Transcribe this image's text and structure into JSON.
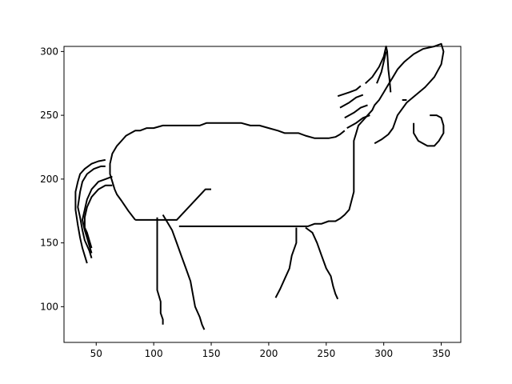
{
  "chart_data": {
    "type": "line",
    "title": "",
    "xlabel": "",
    "ylabel": "",
    "xlim": [
      22,
      367
    ],
    "ylim": [
      72,
      304
    ],
    "x_ticks": [
      50,
      100,
      150,
      200,
      250,
      300,
      350
    ],
    "y_ticks": [
      100,
      150,
      200,
      250,
      300
    ],
    "grid": false,
    "legend": "none",
    "line_color": "#000000",
    "series": [
      {
        "points": [
          [
            84,
            168
          ],
          [
            120,
            168
          ],
          [
            145,
            192
          ],
          [
            150,
            192
          ]
        ]
      },
      {
        "points": [
          [
            122,
            163
          ],
          [
            232,
            163
          ],
          [
            234,
            163
          ],
          [
            240,
            165
          ],
          [
            246,
            165
          ],
          [
            252,
            167
          ],
          [
            258,
            167
          ],
          [
            262,
            169
          ],
          [
            266,
            172
          ],
          [
            270,
            176
          ],
          [
            272,
            183
          ],
          [
            274,
            190
          ],
          [
            274,
            230
          ],
          [
            276,
            236
          ],
          [
            278,
            242
          ],
          [
            282,
            246
          ],
          [
            286,
            250
          ],
          [
            290,
            254
          ],
          [
            292,
            258
          ],
          [
            296,
            262
          ],
          [
            300,
            268
          ],
          [
            304,
            274
          ],
          [
            308,
            280
          ],
          [
            312,
            286
          ],
          [
            318,
            292
          ],
          [
            326,
            298
          ],
          [
            334,
            302
          ],
          [
            344,
            304
          ],
          [
            350,
            306
          ],
          [
            352,
            300
          ],
          [
            350,
            290
          ],
          [
            344,
            280
          ],
          [
            336,
            272
          ],
          [
            328,
            266
          ],
          [
            320,
            260
          ],
          [
            316,
            255
          ],
          [
            312,
            250
          ],
          [
            308,
            240
          ],
          [
            304,
            235
          ],
          [
            298,
            231
          ],
          [
            292,
            228
          ]
        ]
      },
      {
        "points": [
          [
            84,
            168
          ],
          [
            78,
            175
          ],
          [
            72,
            183
          ],
          [
            68,
            188
          ],
          [
            66,
            192
          ],
          [
            64,
            198
          ],
          [
            62,
            204
          ],
          [
            62,
            212
          ],
          [
            64,
            220
          ],
          [
            68,
            226
          ],
          [
            72,
            230
          ],
          [
            76,
            234
          ],
          [
            80,
            236
          ],
          [
            84,
            238
          ],
          [
            88,
            238
          ],
          [
            94,
            240
          ],
          [
            100,
            240
          ],
          [
            108,
            242
          ],
          [
            116,
            242
          ],
          [
            124,
            242
          ],
          [
            132,
            242
          ],
          [
            140,
            242
          ],
          [
            146,
            244
          ],
          [
            152,
            244
          ],
          [
            160,
            244
          ],
          [
            168,
            244
          ],
          [
            176,
            244
          ],
          [
            184,
            242
          ],
          [
            192,
            242
          ],
          [
            200,
            240
          ],
          [
            208,
            238
          ],
          [
            214,
            236
          ],
          [
            220,
            236
          ],
          [
            226,
            236
          ],
          [
            232,
            234
          ],
          [
            240,
            232
          ],
          [
            246,
            232
          ],
          [
            252,
            232
          ],
          [
            258,
            233
          ],
          [
            262,
            235
          ],
          [
            266,
            238
          ]
        ]
      },
      {
        "points": [
          [
            103,
            170
          ],
          [
            103,
            113
          ],
          [
            106,
            104
          ],
          [
            106,
            95
          ],
          [
            108,
            90
          ],
          [
            108,
            86
          ]
        ]
      },
      {
        "points": [
          [
            108,
            172
          ],
          [
            112,
            166
          ],
          [
            116,
            160
          ],
          [
            120,
            150
          ],
          [
            124,
            140
          ],
          [
            128,
            130
          ],
          [
            132,
            120
          ],
          [
            134,
            110
          ],
          [
            136,
            100
          ],
          [
            140,
            92
          ],
          [
            142,
            86
          ],
          [
            144,
            82
          ]
        ]
      },
      {
        "points": [
          [
            224,
            162
          ],
          [
            224,
            150
          ],
          [
            220,
            140
          ],
          [
            218,
            130
          ],
          [
            214,
            122
          ],
          [
            210,
            114
          ],
          [
            206,
            107
          ]
        ]
      },
      {
        "points": [
          [
            232,
            162
          ],
          [
            238,
            158
          ],
          [
            242,
            150
          ],
          [
            246,
            140
          ],
          [
            250,
            130
          ],
          [
            254,
            124
          ],
          [
            256,
            116
          ],
          [
            258,
            110
          ],
          [
            260,
            106
          ]
        ]
      },
      {
        "points": [
          [
            58,
            215
          ],
          [
            52,
            214
          ],
          [
            46,
            212
          ],
          [
            40,
            208
          ],
          [
            36,
            204
          ],
          [
            34,
            198
          ],
          [
            32,
            190
          ],
          [
            32,
            176
          ],
          [
            34,
            164
          ],
          [
            36,
            154
          ],
          [
            38,
            146
          ],
          [
            40,
            140
          ],
          [
            42,
            134
          ]
        ]
      },
      {
        "points": [
          [
            58,
            210
          ],
          [
            54,
            210
          ],
          [
            48,
            208
          ],
          [
            42,
            204
          ],
          [
            38,
            198
          ],
          [
            36,
            190
          ],
          [
            34,
            178
          ],
          [
            36,
            170
          ],
          [
            38,
            160
          ],
          [
            40,
            152
          ],
          [
            44,
            144
          ],
          [
            46,
            138
          ]
        ]
      },
      {
        "points": [
          [
            64,
            202
          ],
          [
            58,
            200
          ],
          [
            52,
            198
          ],
          [
            46,
            192
          ],
          [
            42,
            184
          ],
          [
            40,
            176
          ],
          [
            38,
            168
          ],
          [
            40,
            160
          ],
          [
            42,
            154
          ],
          [
            44,
            148
          ],
          [
            46,
            142
          ]
        ]
      },
      {
        "points": [
          [
            64,
            195
          ],
          [
            58,
            195
          ],
          [
            52,
            192
          ],
          [
            46,
            186
          ],
          [
            42,
            178
          ],
          [
            40,
            170
          ],
          [
            40,
            162
          ],
          [
            42,
            158
          ],
          [
            44,
            152
          ],
          [
            46,
            146
          ]
        ]
      },
      {
        "points": [
          [
            260,
            265
          ],
          [
            270,
            268
          ],
          [
            276,
            270
          ],
          [
            280,
            273
          ]
        ]
      },
      {
        "points": [
          [
            262,
            256
          ],
          [
            270,
            260
          ],
          [
            276,
            264
          ],
          [
            282,
            266
          ]
        ]
      },
      {
        "points": [
          [
            266,
            248
          ],
          [
            274,
            252
          ],
          [
            280,
            256
          ],
          [
            286,
            258
          ]
        ]
      },
      {
        "points": [
          [
            268,
            240
          ],
          [
            276,
            244
          ],
          [
            282,
            248
          ],
          [
            288,
            250
          ]
        ]
      },
      {
        "points": [
          [
            284,
            275
          ],
          [
            290,
            280
          ],
          [
            296,
            288
          ],
          [
            300,
            296
          ],
          [
            302,
            304
          ],
          [
            303,
            300
          ],
          [
            304,
            286
          ],
          [
            305,
            278
          ],
          [
            306,
            268
          ]
        ]
      },
      {
        "points": [
          [
            294,
            275
          ],
          [
            298,
            284
          ],
          [
            300,
            292
          ],
          [
            302,
            300
          ]
        ]
      },
      {
        "points": [
          [
            326,
            244
          ],
          [
            326,
            236
          ],
          [
            330,
            230
          ],
          [
            334,
            228
          ],
          [
            338,
            226
          ],
          [
            344,
            226
          ],
          [
            348,
            230
          ],
          [
            352,
            236
          ],
          [
            352,
            242
          ],
          [
            350,
            248
          ],
          [
            346,
            250
          ],
          [
            340,
            250
          ]
        ]
      },
      {
        "points": [
          [
            316,
            262
          ],
          [
            320,
            262
          ]
        ]
      }
    ]
  }
}
